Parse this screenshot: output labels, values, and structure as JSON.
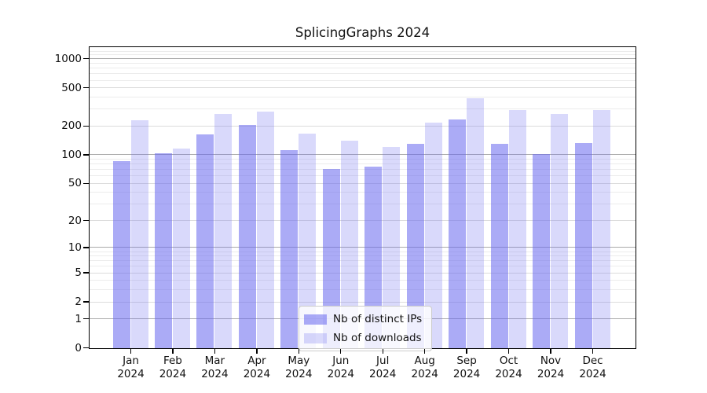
{
  "chart_data": {
    "type": "bar",
    "title": "SplicingGraphs 2024",
    "year_label": "2024",
    "categories": [
      "Jan",
      "Feb",
      "Mar",
      "Apr",
      "May",
      "Jun",
      "Jul",
      "Aug",
      "Sep",
      "Oct",
      "Nov",
      "Dec"
    ],
    "series": [
      {
        "name": "Nb of distinct IPs",
        "color": "rgba(102,102,238,0.55)",
        "values": [
          87,
          104,
          165,
          206,
          112,
          71,
          76,
          132,
          236,
          132,
          103,
          134
        ]
      },
      {
        "name": "Nb of downloads",
        "color": "rgba(102,102,238,0.25)",
        "values": [
          230,
          117,
          270,
          285,
          167,
          143,
          123,
          218,
          395,
          294,
          271,
          298
        ]
      }
    ],
    "xlabel": "",
    "ylabel": "",
    "y_axis": {
      "scale": "log1p",
      "ylim": [
        0,
        1309
      ],
      "tick_labels": [
        "1000",
        "500",
        "200",
        "100",
        "50",
        "20",
        "10",
        "5",
        "2",
        "1",
        "0"
      ],
      "tick_values": [
        1000,
        500,
        200,
        100,
        50,
        20,
        10,
        5,
        2,
        1,
        0
      ],
      "major_gridlines": [
        1,
        10,
        100,
        1000
      ],
      "labeled_gridlines": [
        2,
        5,
        20,
        50,
        200,
        500
      ],
      "minor_gridlines": [
        3,
        4,
        6,
        7,
        8,
        9,
        30,
        40,
        60,
        70,
        80,
        90,
        300,
        400,
        600,
        700,
        800,
        900,
        1100,
        1200
      ]
    },
    "grid": true,
    "legend": {
      "position": "lower center",
      "items": [
        {
          "label": "Nb of distinct IPs"
        },
        {
          "label": "Nb of downloads"
        }
      ]
    }
  },
  "colors": {
    "bar_base": "#6666ee",
    "major_grid": "#ababab",
    "light_grid": "#dcdcdc",
    "minor_grid": "#ececec",
    "spine": "#000000"
  }
}
